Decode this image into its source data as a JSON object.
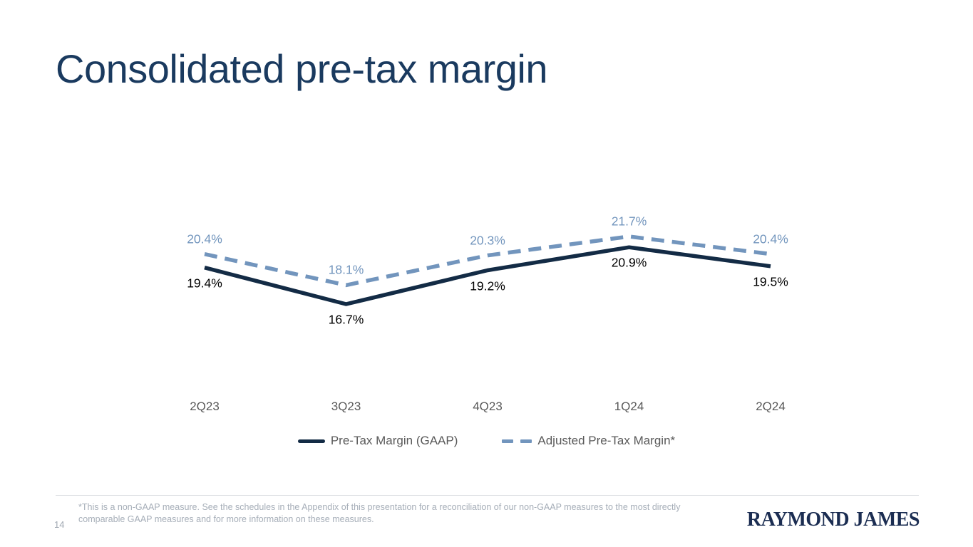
{
  "slide": {
    "title": "Consolidated pre-tax margin",
    "page_number": "14",
    "footnote": "*This is a non-GAAP measure. See the schedules in the Appendix of this presentation for a reconciliation of our non-GAAP measures to the most directly comparable GAAP measures and for more information on these measures.",
    "logo_text": "RAYMOND JAMES"
  },
  "chart_data": {
    "type": "line",
    "title": "Consolidated pre-tax margin",
    "categories": [
      "2Q23",
      "3Q23",
      "4Q23",
      "1Q24",
      "2Q24"
    ],
    "series": [
      {
        "name": "Pre-Tax Margin (GAAP)",
        "values": [
          19.4,
          16.7,
          19.2,
          20.9,
          19.5
        ],
        "style": "solid",
        "color": "#132b45",
        "label_color": "#000000",
        "label_position": "below"
      },
      {
        "name": "Adjusted Pre-Tax Margin*",
        "values": [
          20.4,
          18.1,
          20.3,
          21.7,
          20.4
        ],
        "style": "dashed",
        "color": "#7295bd",
        "label_color": "#7295bd",
        "label_position": "above"
      }
    ],
    "value_suffix": "%",
    "xlabel": "",
    "ylabel": "",
    "grid": false,
    "axes_hidden": true,
    "legend_position": "bottom",
    "data_labels": true
  },
  "colors": {
    "title_navy": "#1a3a5f",
    "gaap_line": "#132b45",
    "adjusted_line": "#7295bd",
    "axis_text": "#595959",
    "footnote_gray": "#a6aeb8",
    "logo_navy": "#1b2d52"
  }
}
